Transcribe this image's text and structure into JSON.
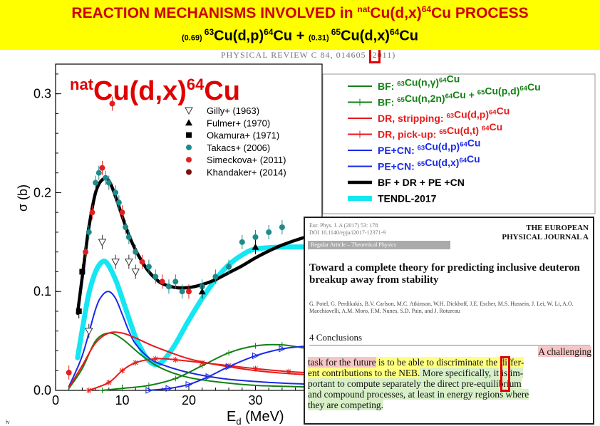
{
  "slide": {
    "title_main": "REACTION MECHANISMS INVOLVED in ",
    "title_sup": "nat",
    "title_iso": "Cu(d,x)",
    "title_sup2": "64",
    "title_el": "Cu",
    "title_end": "  PROCESS",
    "sub_w1": "(0.69) ",
    "sub_s1": "63",
    "sub_t1": "Cu(d,p)",
    "sub_s2": "64",
    "sub_t2": "Cu  +  ",
    "sub_w2": "(0.31) ",
    "sub_s3": "65",
    "sub_t3": "Cu(d,x)",
    "sub_s4": "64",
    "sub_t4": "Cu",
    "journal": "PHYSICAL REVIEW C 84, 014605 (2011)",
    "footer_mark": "fv",
    "colors": {
      "banner": "#ffff00",
      "accent": "#cc0000"
    }
  },
  "chart_data": {
    "type": "line",
    "xlabel": "E",
    "xlabel_sub": "d",
    "xlabel_unit": "(MeV)",
    "ylabel": "σ (b)",
    "xlim": [
      0,
      40
    ],
    "ylim": [
      0,
      0.33
    ],
    "xticks": [
      0,
      10,
      20,
      30
    ],
    "yticks": [
      0.0,
      0.1,
      0.2,
      0.3
    ],
    "plot_label": {
      "sup1": "nat",
      "text": "Cu(d,x)",
      "sup2": "64",
      "el": "Cu"
    },
    "experiments": [
      {
        "name": "Gilly+ (1963)",
        "marker": "triangle-down-open",
        "color": "#333333"
      },
      {
        "name": "Fulmer+ (1970)",
        "marker": "triangle-up",
        "color": "#000000"
      },
      {
        "name": "Okamura+ (1971)",
        "marker": "square",
        "color": "#000000"
      },
      {
        "name": "Takacs+ (2006)",
        "marker": "circle",
        "color": "#1f8a8a"
      },
      {
        "name": "Simeckova+ (2011)",
        "marker": "circle",
        "color": "#e02020"
      },
      {
        "name": "Khandaker+ (2014)",
        "marker": "circle",
        "color": "#7a1010"
      }
    ],
    "series": [
      {
        "name": "BF: 63Cu(n,γ)64Cu",
        "label_parts": [
          "BF: ",
          "63",
          "Cu(n,",
          "γ",
          ")",
          "64",
          "Cu"
        ],
        "color": "#138013",
        "style": "solid",
        "x": [
          2,
          4,
          6,
          8,
          10,
          13,
          16,
          20,
          25,
          30,
          35,
          40
        ],
        "y": [
          0.002,
          0.022,
          0.05,
          0.058,
          0.052,
          0.035,
          0.022,
          0.013,
          0.008,
          0.005,
          0.004,
          0.003
        ]
      },
      {
        "name": "BF: 65Cu(n,2n)64Cu + 65Cu(p,d)64Cu",
        "label_parts": [
          "BF: ",
          "65",
          "Cu(n,2n)",
          "64",
          "Cu + ",
          "65",
          "Cu(p,d)",
          "64",
          "Cu"
        ],
        "color": "#138013",
        "style": "plus",
        "x": [
          7,
          10,
          14,
          18,
          22,
          26,
          30,
          34,
          38,
          40
        ],
        "y": [
          0.0,
          0.002,
          0.005,
          0.012,
          0.025,
          0.038,
          0.045,
          0.046,
          0.042,
          0.04
        ]
      },
      {
        "name": "DR, stripping: 63Cu(d,p)64Cu",
        "label_parts": [
          "DR, stripping: ",
          "63",
          "Cu(d,p)",
          "64",
          "Cu"
        ],
        "color": "#e81a1a",
        "style": "solid",
        "x": [
          2,
          4,
          6,
          8,
          10,
          12,
          15,
          20,
          25,
          30,
          35,
          40
        ],
        "y": [
          0.003,
          0.025,
          0.048,
          0.058,
          0.058,
          0.053,
          0.044,
          0.032,
          0.025,
          0.02,
          0.017,
          0.015
        ]
      },
      {
        "name": "DR, pick-up: 65Cu(d,t)64Cu",
        "label_parts": [
          "DR, pick-up: ",
          "65",
          "Cu(d,t) ",
          "64",
          "Cu"
        ],
        "color": "#e81a1a",
        "style": "star",
        "x": [
          5,
          8,
          10,
          12,
          15,
          18,
          22,
          26,
          30,
          35,
          40
        ],
        "y": [
          0.0,
          0.008,
          0.02,
          0.028,
          0.032,
          0.031,
          0.028,
          0.025,
          0.022,
          0.019,
          0.017
        ]
      },
      {
        "name": "PE+CN: 63Cu(d,p)64Cu",
        "label_parts": [
          "PE+CN: ",
          "63",
          "Cu(d,p)",
          "64",
          "Cu"
        ],
        "color": "#1a2ae8",
        "style": "solid",
        "x": [
          2,
          4,
          6,
          7,
          8,
          9,
          10,
          11,
          12,
          14,
          16,
          20,
          25,
          30,
          35,
          40
        ],
        "y": [
          0.004,
          0.035,
          0.082,
          0.096,
          0.1,
          0.093,
          0.077,
          0.06,
          0.047,
          0.033,
          0.026,
          0.018,
          0.012,
          0.009,
          0.007,
          0.006
        ]
      },
      {
        "name": "PE+CN: 65Cu(d,x)64Cu",
        "label_parts": [
          "PE+CN: ",
          "65",
          "Cu(d,x)",
          "64",
          "Cu"
        ],
        "color": "#1a2ae8",
        "style": "triangle",
        "x": [
          14,
          17,
          20,
          23,
          26,
          30,
          34,
          38,
          40
        ],
        "y": [
          0.0,
          0.002,
          0.006,
          0.014,
          0.024,
          0.035,
          0.042,
          0.045,
          0.046
        ]
      },
      {
        "name": "BF + DR + PE +CN",
        "label_parts": [
          "BF ",
          "+",
          " DR ",
          "+",
          " PE ",
          "+",
          "CN"
        ],
        "color": "#000000",
        "style": "bold",
        "x": [
          3.3,
          4.3,
          5,
          6,
          7,
          8,
          9,
          10,
          11,
          12,
          13,
          14,
          15,
          16,
          18,
          20,
          22,
          24,
          26,
          28,
          30,
          32,
          34,
          37,
          40
        ],
        "y": [
          0.078,
          0.13,
          0.165,
          0.2,
          0.213,
          0.212,
          0.196,
          0.176,
          0.157,
          0.142,
          0.13,
          0.12,
          0.113,
          0.108,
          0.104,
          0.104,
          0.107,
          0.112,
          0.119,
          0.126,
          0.134,
          0.141,
          0.147,
          0.154,
          0.16
        ]
      },
      {
        "name": "TENDL-2017",
        "label_parts": [
          "TENDL-2017"
        ],
        "color": "#14e6f2",
        "style": "cyan",
        "x": [
          3.3,
          4.3,
          5,
          6,
          7,
          7.8,
          9,
          10,
          11,
          12,
          13,
          14,
          15,
          16,
          17,
          18,
          19,
          20,
          22,
          24,
          26,
          28,
          30,
          34,
          38,
          40
        ],
        "y": [
          0.033,
          0.073,
          0.098,
          0.12,
          0.13,
          0.128,
          0.112,
          0.093,
          0.073,
          0.054,
          0.04,
          0.03,
          0.026,
          0.029,
          0.037,
          0.047,
          0.059,
          0.071,
          0.093,
          0.112,
          0.127,
          0.137,
          0.143,
          0.145,
          0.145,
          0.145
        ]
      }
    ],
    "data_points": [
      {
        "x": 4,
        "y": 0.12,
        "m": "square",
        "c": "#000000"
      },
      {
        "x": 4.5,
        "y": 0.14,
        "m": "circle",
        "c": "#e02020"
      },
      {
        "x": 5,
        "y": 0.16,
        "m": "circle",
        "c": "#1f8a8a"
      },
      {
        "x": 5.5,
        "y": 0.18,
        "m": "circle",
        "c": "#e02020"
      },
      {
        "x": 6,
        "y": 0.21,
        "m": "circle",
        "c": "#1f8a8a"
      },
      {
        "x": 6.5,
        "y": 0.22,
        "m": "circle",
        "c": "#1f8a8a"
      },
      {
        "x": 7,
        "y": 0.225,
        "m": "circle",
        "c": "#e02020"
      },
      {
        "x": 7.5,
        "y": 0.215,
        "m": "circle",
        "c": "#1f8a8a"
      },
      {
        "x": 8,
        "y": 0.21,
        "m": "circle",
        "c": "#1f8a8a"
      },
      {
        "x": 8.5,
        "y": 0.29,
        "m": "circle",
        "c": "#e02020"
      },
      {
        "x": 9,
        "y": 0.2,
        "m": "circle",
        "c": "#1f8a8a"
      },
      {
        "x": 9.5,
        "y": 0.19,
        "m": "circle",
        "c": "#1f8a8a"
      },
      {
        "x": 10,
        "y": 0.18,
        "m": "circle",
        "c": "#e02020"
      },
      {
        "x": 10.5,
        "y": 0.165,
        "m": "circle",
        "c": "#1f8a8a"
      },
      {
        "x": 11,
        "y": 0.155,
        "m": "circle",
        "c": "#1f8a8a"
      },
      {
        "x": 12,
        "y": 0.14,
        "m": "circle",
        "c": "#1f8a8a"
      },
      {
        "x": 13,
        "y": 0.13,
        "m": "circle",
        "c": "#e02020"
      },
      {
        "x": 14,
        "y": 0.125,
        "m": "circle",
        "c": "#1f8a8a"
      },
      {
        "x": 15,
        "y": 0.115,
        "m": "circle",
        "c": "#1f8a8a"
      },
      {
        "x": 16,
        "y": 0.11,
        "m": "circle",
        "c": "#e02020"
      },
      {
        "x": 17,
        "y": 0.105,
        "m": "circle",
        "c": "#1f8a8a"
      },
      {
        "x": 18,
        "y": 0.11,
        "m": "circle",
        "c": "#1f8a8a"
      },
      {
        "x": 19,
        "y": 0.1,
        "m": "circle",
        "c": "#1f8a8a"
      },
      {
        "x": 20,
        "y": 0.1,
        "m": "circle",
        "c": "#e02020"
      },
      {
        "x": 22,
        "y": 0.105,
        "m": "circle",
        "c": "#1f8a8a"
      },
      {
        "x": 24,
        "y": 0.115,
        "m": "circle",
        "c": "#1f8a8a"
      },
      {
        "x": 26,
        "y": 0.125,
        "m": "circle",
        "c": "#1f8a8a"
      },
      {
        "x": 28,
        "y": 0.15,
        "m": "circle",
        "c": "#1f8a8a"
      },
      {
        "x": 30,
        "y": 0.155,
        "m": "circle",
        "c": "#1f8a8a"
      },
      {
        "x": 32,
        "y": 0.16,
        "m": "circle",
        "c": "#1f8a8a"
      },
      {
        "x": 34,
        "y": 0.165,
        "m": "circle",
        "c": "#1f8a8a"
      },
      {
        "x": 7,
        "y": 0.15,
        "m": "tri-down",
        "c": "#333333"
      },
      {
        "x": 9,
        "y": 0.13,
        "m": "tri-down",
        "c": "#333333"
      },
      {
        "x": 11,
        "y": 0.13,
        "m": "tri-down",
        "c": "#333333"
      },
      {
        "x": 12,
        "y": 0.12,
        "m": "tri-down",
        "c": "#333333"
      },
      {
        "x": 5,
        "y": 0.06,
        "m": "tri-down",
        "c": "#333333"
      },
      {
        "x": 22,
        "y": 0.1,
        "m": "triangle",
        "c": "#000000"
      },
      {
        "x": 30,
        "y": 0.145,
        "m": "triangle",
        "c": "#000000"
      },
      {
        "x": 2,
        "y": 0.018,
        "m": "circle",
        "c": "#e02020"
      },
      {
        "x": 3.5,
        "y": 0.08,
        "m": "square",
        "c": "#000000"
      }
    ]
  },
  "inset": {
    "citation": "Eur. Phys. J. A (2017) 53: 178",
    "doi": "DOI 10.1140/epja/i2017-12371-9",
    "logo_line1": "THE EUROPEAN",
    "logo_line2": "PHYSICAL JOURNAL A",
    "section_bar": "Regular Article – Theoretical Physics",
    "title": "Toward a complete theory for predicting inclusive deuteron breakup away from stability",
    "authors": "G. Potel, G. Perdikakis, B.V. Carlson, M.C. Atkinson, W.H. Dickhoff, J.E. Escher, M.S. Hussein, J. Lei, W. Li, A.O. Macchiavelli, A.M. Moro, F.M. Nunes, S.D. Pain, and J. Rotureau",
    "conclusions": "4 Conclusions",
    "line1_a": "A challenging",
    "line2_a": "task for the future",
    "line2_b": " is to be able to discriminate the differ-",
    "line3_a": "ent contributions to the NEB.",
    "line3_b": " More specifically, it is im-",
    "line4": "portant to compute separately the direct pre-equilibrium",
    "line5": "and compound processes, at least in energy regions where",
    "line6": "they are competing."
  }
}
